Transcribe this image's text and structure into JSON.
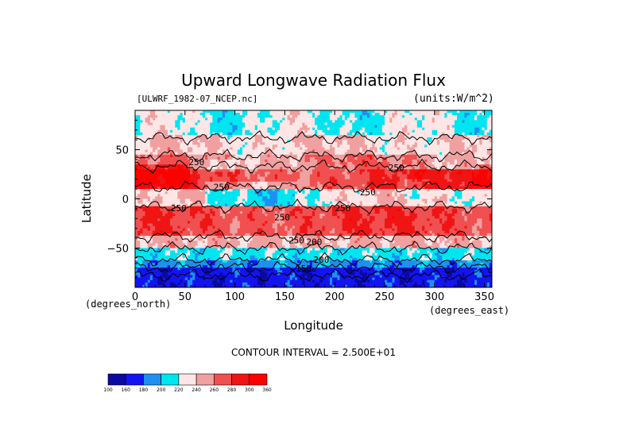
{
  "chart_data": {
    "type": "heatmap",
    "title": "Upward Longwave Radiation Flux",
    "source_label": "[ULWRF_1982-07_NCEP.nc]",
    "units_label": "(units:W/m^2)",
    "xlabel": "Longitude",
    "ylabel": "Latitude",
    "x_unit_label": "(degrees_east)",
    "y_unit_label": "(degrees_north)",
    "xlim": [
      0,
      357.5
    ],
    "ylim": [
      -90,
      90
    ],
    "x_ticks": [
      "0",
      "50",
      "100",
      "150",
      "200",
      "250",
      "300",
      "350"
    ],
    "y_ticks": [
      "50",
      "0",
      "−50"
    ],
    "contour_interval_text": "CONTOUR INTERVAL = 2.500E+01",
    "contour_labels": [
      "250",
      "250",
      "250",
      "250",
      "250",
      "200",
      "200",
      "150",
      "250",
      "250",
      "250"
    ],
    "colorbar": {
      "boundaries": [
        "100",
        "160",
        "180",
        "200",
        "220",
        "240",
        "260",
        "280",
        "300",
        "360"
      ],
      "colors": [
        "#0a0aa0",
        "#1414f0",
        "#1e90f0",
        "#00e6f0",
        "#ffe6e6",
        "#f0a0a0",
        "#f05050",
        "#f01414",
        "#ff0000"
      ]
    }
  }
}
